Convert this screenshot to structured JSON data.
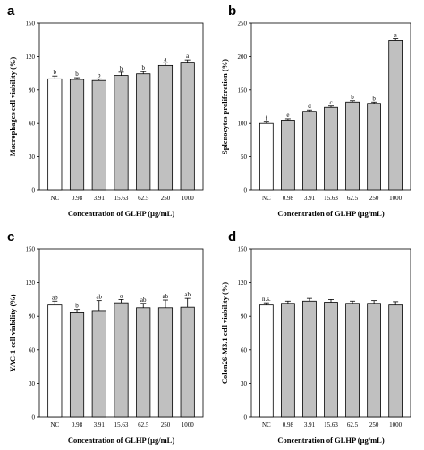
{
  "colors": {
    "control_bar": "#ffffff",
    "treatment_bar": "#c0c0c0",
    "axis": "#000000"
  },
  "chart_data": [
    {
      "panel": "a",
      "type": "bar",
      "categories": [
        "NC",
        "0.98",
        "3.91",
        "15.63",
        "62.5",
        "250",
        "1000"
      ],
      "values": [
        100,
        99.5,
        98.5,
        103,
        104.5,
        112,
        115
      ],
      "errors": [
        2.5,
        1.5,
        1.5,
        3,
        2,
        2.5,
        2
      ],
      "labels": [
        "b",
        "b",
        "b",
        "b",
        "b",
        "a",
        "a"
      ],
      "xlabel": "Concentration of GLHP (μg/mL)",
      "ylabel": "Macrophages cell viability (%)",
      "ylim": [
        0,
        150
      ],
      "yticks": [
        0,
        30,
        60,
        90,
        120,
        150
      ],
      "grid": false
    },
    {
      "panel": "b",
      "type": "bar",
      "categories": [
        "NC",
        "0.98",
        "3.91",
        "15.63",
        "62.5",
        "250",
        "1000"
      ],
      "values": [
        100,
        105,
        118,
        124,
        132,
        130,
        224
      ],
      "errors": [
        2,
        2,
        2,
        2,
        2,
        2,
        2.5
      ],
      "labels": [
        "f",
        "e",
        "d",
        "c",
        "b",
        "b",
        "a"
      ],
      "xlabel": "Concentration of GLHP (μg/mL)",
      "ylabel": "Splenocytes proliferation (%)",
      "ylim": [
        0,
        250
      ],
      "yticks": [
        0,
        50,
        100,
        150,
        200,
        250
      ],
      "grid": false
    },
    {
      "panel": "c",
      "type": "bar",
      "categories": [
        "NC",
        "0.98",
        "3.91",
        "15.63",
        "62.5",
        "250",
        "1000"
      ],
      "values": [
        100,
        93,
        95,
        102,
        97.5,
        97.5,
        98
      ],
      "errors": [
        3.5,
        3,
        9,
        3,
        4,
        7,
        8
      ],
      "labels": [
        "ab",
        "b",
        "ab",
        "a",
        "ab",
        "ab",
        "ab"
      ],
      "xlabel": "Concentration of GLHP (μg/mL)",
      "ylabel": "YAC-1 cell viability (%)",
      "ylim": [
        0,
        150
      ],
      "yticks": [
        0,
        30,
        60,
        90,
        120,
        150
      ],
      "grid": false
    },
    {
      "panel": "d",
      "type": "bar",
      "categories": [
        "NC",
        "0.98",
        "3.91",
        "15.63",
        "62.5",
        "250",
        "1000"
      ],
      "values": [
        100,
        101.5,
        103.5,
        102.5,
        101.5,
        101.5,
        100
      ],
      "errors": [
        2,
        2,
        2.5,
        2.5,
        2,
        2.5,
        3
      ],
      "labels": [
        "n.s.",
        "",
        "",
        "",
        "",
        "",
        ""
      ],
      "xlabel": "Concentration of GLHP (μg/mL)",
      "ylabel": "Colon26-M3.1 cell viability (%)",
      "ylim": [
        0,
        150
      ],
      "yticks": [
        0,
        30,
        60,
        90,
        120,
        150
      ],
      "grid": false
    }
  ]
}
